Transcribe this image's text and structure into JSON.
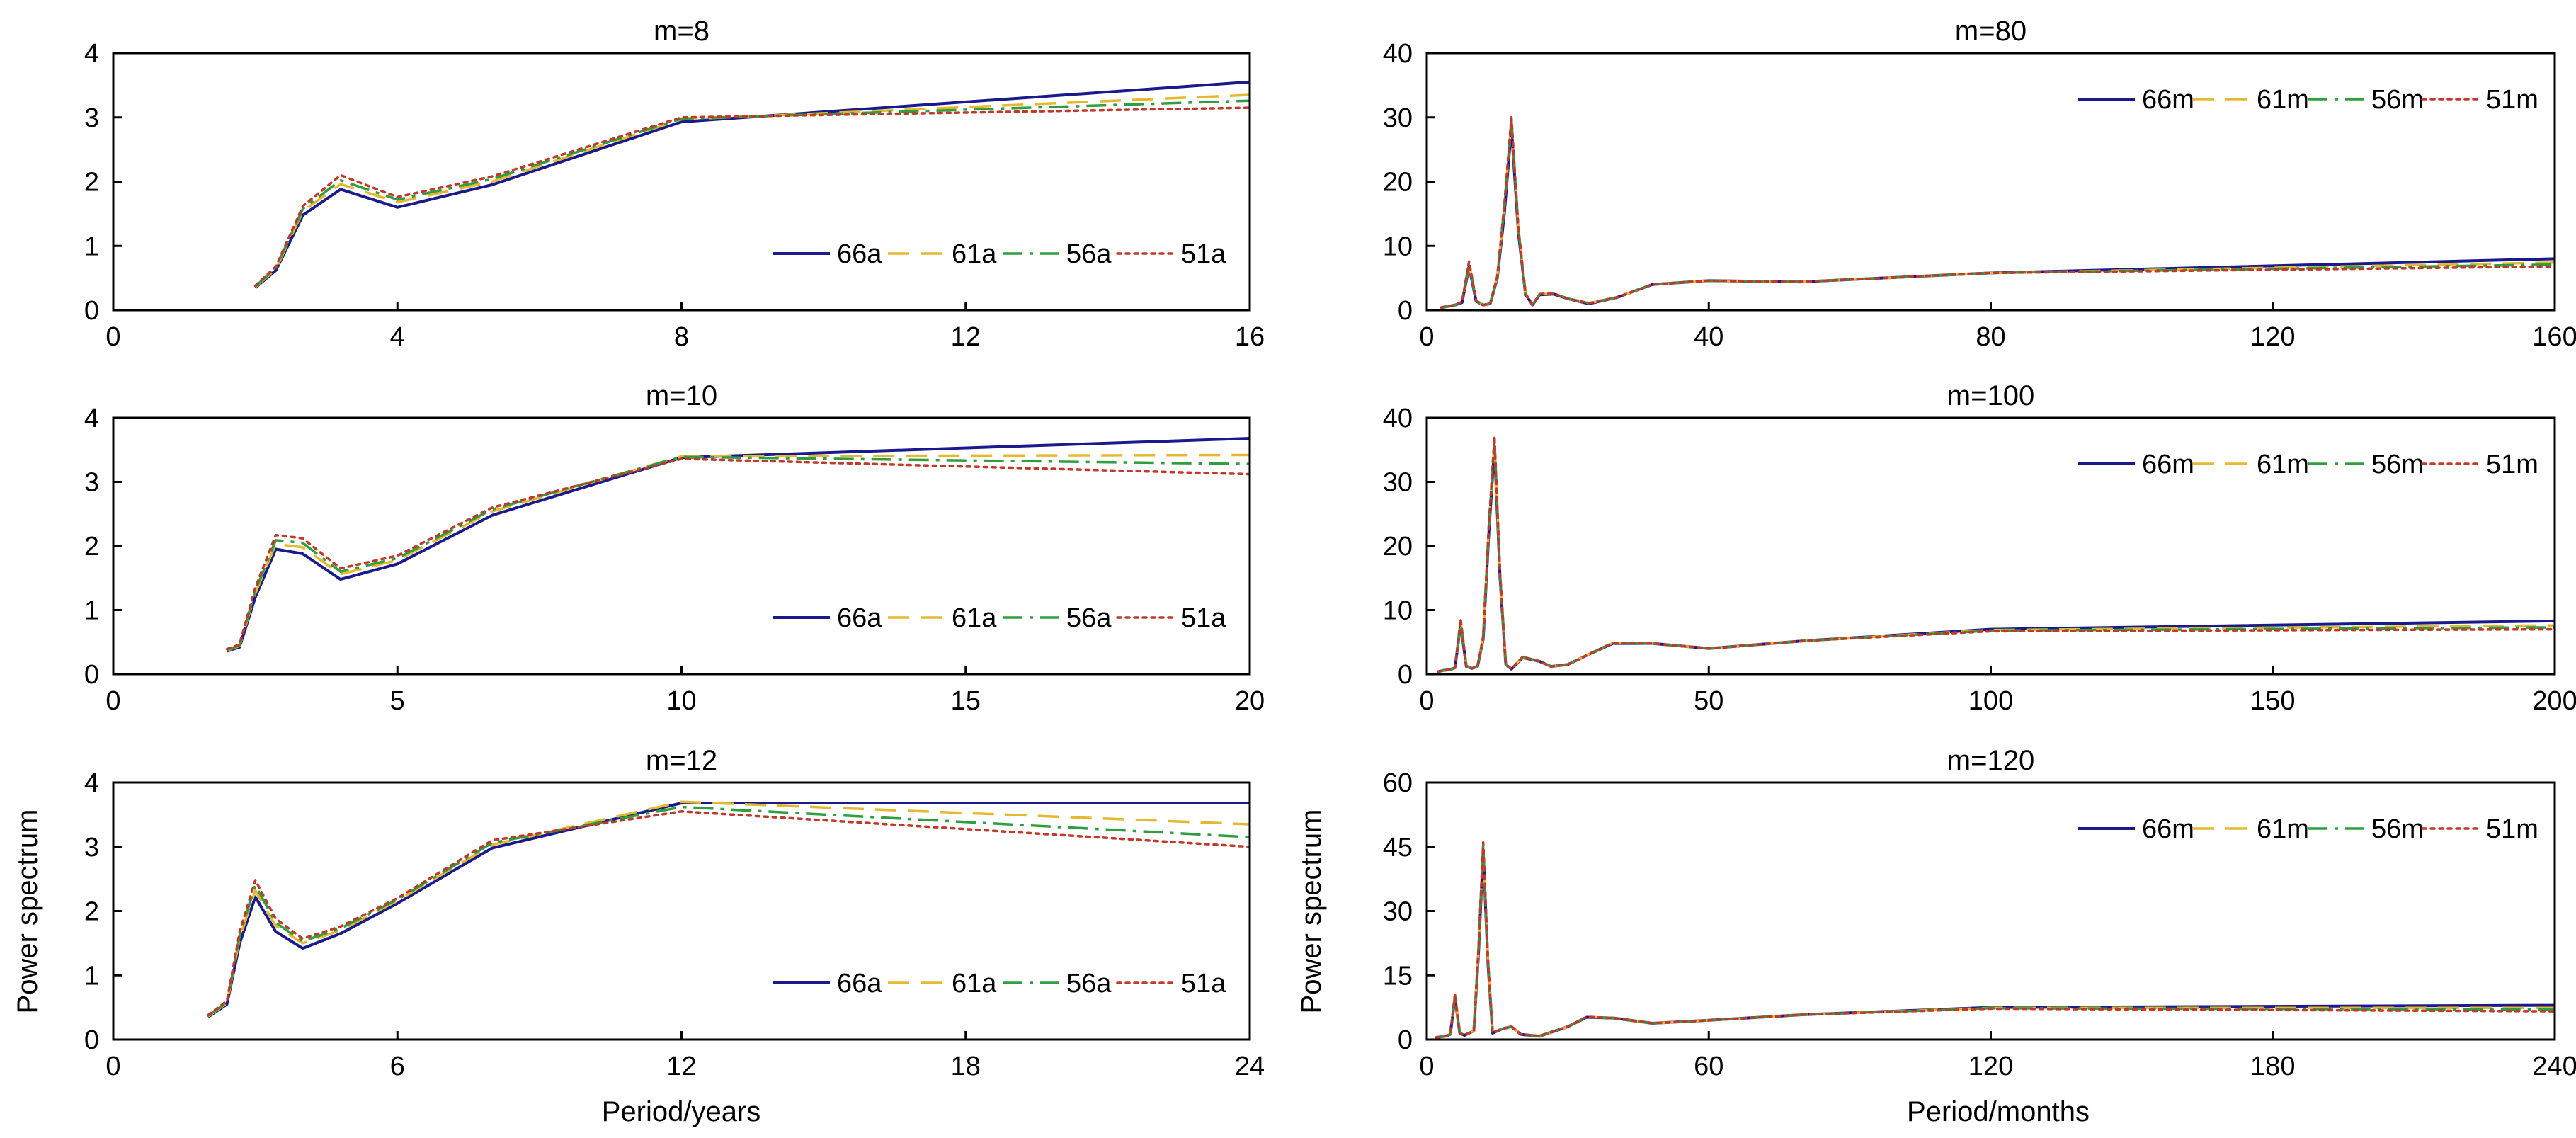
{
  "figure": {
    "left_ylabel": "Power spectrum",
    "right_ylabel": "Power spectrum",
    "left_xlabel": "Period/years",
    "right_xlabel": "Period/months"
  },
  "series_styles": [
    {
      "color": "#1a1a8c",
      "dash": "solid"
    },
    {
      "color": "#e6b830",
      "dash": "dashed"
    },
    {
      "color": "#2e9e3e",
      "dash": "dashdot"
    },
    {
      "color": "#c0392b",
      "dash": "dotted"
    }
  ],
  "chart_data": [
    {
      "type": "line",
      "title": "m=8",
      "xlim": [
        0,
        16
      ],
      "ylim": [
        0,
        4
      ],
      "xticks": [
        0,
        4,
        8,
        12,
        16
      ],
      "yticks": [
        0,
        1,
        2,
        3,
        4
      ],
      "legend": "bottom-right",
      "series": [
        {
          "name": "66a",
          "x": [
            2.0,
            2.29,
            2.67,
            3.2,
            4.0,
            5.33,
            8.0,
            16.0
          ],
          "y": [
            0.35,
            0.62,
            1.48,
            1.88,
            1.6,
            1.95,
            2.93,
            3.55
          ]
        },
        {
          "name": "61a",
          "x": [
            2.0,
            2.29,
            2.67,
            3.2,
            4.0,
            5.33,
            8.0,
            16.0
          ],
          "y": [
            0.36,
            0.64,
            1.54,
            1.96,
            1.68,
            2.0,
            2.97,
            3.35
          ]
        },
        {
          "name": "56a",
          "x": [
            2.0,
            2.29,
            2.67,
            3.2,
            4.0,
            5.33,
            8.0,
            16.0
          ],
          "y": [
            0.37,
            0.66,
            1.58,
            2.02,
            1.72,
            2.04,
            2.98,
            3.26
          ]
        },
        {
          "name": "51a",
          "x": [
            2.0,
            2.29,
            2.67,
            3.2,
            4.0,
            5.33,
            8.0,
            16.0
          ],
          "y": [
            0.38,
            0.68,
            1.62,
            2.1,
            1.76,
            2.08,
            3.0,
            3.15
          ]
        }
      ]
    },
    {
      "type": "line",
      "title": "m=80",
      "xlim": [
        0,
        160
      ],
      "ylim": [
        0,
        40
      ],
      "xticks": [
        0,
        40,
        80,
        120,
        160
      ],
      "yticks": [
        0,
        10,
        20,
        30,
        40
      ],
      "legend": "top-right",
      "series": [
        {
          "name": "66m",
          "x": [
            2,
            3,
            4,
            5,
            6,
            7,
            8,
            9,
            10,
            11,
            12,
            13,
            14,
            15,
            16,
            18,
            20,
            23,
            27,
            32,
            40,
            53,
            80,
            160
          ],
          "y": [
            0.4,
            0.6,
            0.8,
            1.2,
            6.8,
            1.4,
            0.8,
            1.0,
            5.0,
            15.0,
            28.5,
            12.0,
            2.5,
            0.8,
            2.4,
            2.5,
            1.8,
            1.0,
            2.0,
            4.0,
            4.6,
            4.4,
            5.8,
            8.0
          ]
        },
        {
          "name": "61m",
          "x": [
            2,
            3,
            4,
            5,
            6,
            7,
            8,
            9,
            10,
            11,
            12,
            13,
            14,
            15,
            16,
            18,
            20,
            23,
            27,
            32,
            40,
            53,
            80,
            160
          ],
          "y": [
            0.4,
            0.6,
            0.8,
            1.3,
            7.2,
            1.5,
            0.8,
            1.0,
            5.2,
            16.0,
            29.5,
            12.5,
            2.6,
            0.8,
            2.5,
            2.6,
            1.8,
            1.1,
            2.0,
            4.0,
            4.6,
            4.4,
            5.8,
            7.4
          ]
        },
        {
          "name": "56m",
          "x": [
            2,
            3,
            4,
            5,
            6,
            7,
            8,
            9,
            10,
            11,
            12,
            13,
            14,
            15,
            16,
            18,
            20,
            23,
            27,
            32,
            40,
            53,
            80,
            160
          ],
          "y": [
            0.4,
            0.6,
            0.8,
            1.3,
            7.4,
            1.5,
            0.8,
            1.0,
            5.2,
            16.2,
            29.8,
            12.6,
            2.6,
            0.8,
            2.5,
            2.6,
            1.8,
            1.1,
            2.0,
            4.0,
            4.6,
            4.4,
            5.8,
            7.1
          ]
        },
        {
          "name": "51m",
          "x": [
            2,
            3,
            4,
            5,
            6,
            7,
            8,
            9,
            10,
            11,
            12,
            13,
            14,
            15,
            16,
            18,
            20,
            23,
            27,
            32,
            40,
            53,
            80,
            160
          ],
          "y": [
            0.4,
            0.6,
            0.8,
            1.3,
            7.6,
            1.5,
            0.8,
            1.0,
            5.3,
            16.4,
            30.0,
            12.7,
            2.6,
            0.8,
            2.5,
            2.6,
            1.8,
            1.1,
            2.0,
            4.0,
            4.6,
            4.4,
            5.8,
            6.8
          ]
        }
      ]
    },
    {
      "type": "line",
      "title": "m=10",
      "xlim": [
        0,
        20
      ],
      "ylim": [
        0,
        4
      ],
      "xticks": [
        0,
        5,
        10,
        15,
        20
      ],
      "yticks": [
        0,
        1,
        2,
        3,
        4
      ],
      "legend": "bottom-right",
      "series": [
        {
          "name": "66a",
          "x": [
            2.0,
            2.22,
            2.5,
            2.86,
            3.33,
            4.0,
            5.0,
            6.67,
            10.0,
            20.0
          ],
          "y": [
            0.36,
            0.42,
            1.2,
            1.95,
            1.88,
            1.48,
            1.72,
            2.48,
            3.38,
            3.68
          ]
        },
        {
          "name": "61a",
          "x": [
            2.0,
            2.22,
            2.5,
            2.86,
            3.33,
            4.0,
            5.0,
            6.67,
            10.0,
            20.0
          ],
          "y": [
            0.37,
            0.44,
            1.26,
            2.03,
            1.98,
            1.56,
            1.78,
            2.54,
            3.4,
            3.42
          ]
        },
        {
          "name": "56a",
          "x": [
            2.0,
            2.22,
            2.5,
            2.86,
            3.33,
            4.0,
            5.0,
            6.67,
            10.0,
            20.0
          ],
          "y": [
            0.38,
            0.45,
            1.3,
            2.09,
            2.05,
            1.6,
            1.81,
            2.57,
            3.39,
            3.28
          ]
        },
        {
          "name": "51a",
          "x": [
            2.0,
            2.22,
            2.5,
            2.86,
            3.33,
            4.0,
            5.0,
            6.67,
            10.0,
            20.0
          ],
          "y": [
            0.39,
            0.46,
            1.35,
            2.17,
            2.12,
            1.65,
            1.85,
            2.6,
            3.36,
            3.12
          ]
        }
      ]
    },
    {
      "type": "line",
      "title": "m=100",
      "xlim": [
        0,
        200
      ],
      "ylim": [
        0,
        40
      ],
      "xticks": [
        0,
        50,
        100,
        150,
        200
      ],
      "yticks": [
        0,
        10,
        20,
        30,
        40
      ],
      "legend": "top-right",
      "series": [
        {
          "name": "66m",
          "x": [
            2,
            3,
            4,
            5,
            6,
            7,
            8,
            9,
            10,
            11,
            12,
            13,
            14,
            15,
            17,
            20,
            22,
            25,
            29,
            33,
            40,
            50,
            67,
            100,
            200
          ],
          "y": [
            0.4,
            0.6,
            0.7,
            1.0,
            7.8,
            1.2,
            0.9,
            1.2,
            5.5,
            22.0,
            35.5,
            15.0,
            1.5,
            0.8,
            2.6,
            2.0,
            1.2,
            1.5,
            3.2,
            4.8,
            4.8,
            4.0,
            5.2,
            7.0,
            8.3
          ]
        },
        {
          "name": "61m",
          "x": [
            2,
            3,
            4,
            5,
            6,
            7,
            8,
            9,
            10,
            11,
            12,
            13,
            14,
            15,
            17,
            20,
            22,
            25,
            29,
            33,
            40,
            50,
            67,
            100,
            200
          ],
          "y": [
            0.4,
            0.6,
            0.7,
            1.0,
            8.2,
            1.3,
            0.9,
            1.2,
            5.7,
            22.8,
            36.5,
            15.4,
            1.5,
            0.8,
            2.7,
            2.0,
            1.2,
            1.5,
            3.2,
            4.9,
            4.8,
            4.0,
            5.2,
            6.9,
            7.6
          ]
        },
        {
          "name": "56m",
          "x": [
            2,
            3,
            4,
            5,
            6,
            7,
            8,
            9,
            10,
            11,
            12,
            13,
            14,
            15,
            17,
            20,
            22,
            25,
            29,
            33,
            40,
            50,
            67,
            100,
            200
          ],
          "y": [
            0.4,
            0.6,
            0.7,
            1.0,
            8.4,
            1.3,
            0.9,
            1.2,
            5.8,
            23.0,
            36.8,
            15.5,
            1.5,
            0.8,
            2.7,
            2.0,
            1.2,
            1.5,
            3.2,
            4.9,
            4.8,
            4.0,
            5.2,
            6.8,
            7.3
          ]
        },
        {
          "name": "51m",
          "x": [
            2,
            3,
            4,
            5,
            6,
            7,
            8,
            9,
            10,
            11,
            12,
            13,
            14,
            15,
            17,
            20,
            22,
            25,
            29,
            33,
            40,
            50,
            67,
            100,
            200
          ],
          "y": [
            0.4,
            0.6,
            0.7,
            1.0,
            8.6,
            1.3,
            0.9,
            1.2,
            5.9,
            23.2,
            37.0,
            15.6,
            1.5,
            0.8,
            2.7,
            2.0,
            1.2,
            1.5,
            3.2,
            4.9,
            4.8,
            4.0,
            5.2,
            6.7,
            7.0
          ]
        }
      ]
    },
    {
      "type": "line",
      "title": "m=12",
      "xlim": [
        0,
        24
      ],
      "ylim": [
        0,
        4
      ],
      "xticks": [
        0,
        6,
        12,
        18,
        24
      ],
      "yticks": [
        0,
        1,
        2,
        3,
        4
      ],
      "legend": "bottom-right",
      "series": [
        {
          "name": "66a",
          "x": [
            2.0,
            2.4,
            2.67,
            3.0,
            3.43,
            4.0,
            4.8,
            6.0,
            8.0,
            12.0,
            24.0
          ],
          "y": [
            0.35,
            0.55,
            1.5,
            2.22,
            1.68,
            1.42,
            1.65,
            2.12,
            2.98,
            3.68,
            3.68
          ]
        },
        {
          "name": "61a",
          "x": [
            2.0,
            2.4,
            2.67,
            3.0,
            3.43,
            4.0,
            4.8,
            6.0,
            8.0,
            12.0,
            24.0
          ],
          "y": [
            0.36,
            0.57,
            1.58,
            2.32,
            1.77,
            1.5,
            1.7,
            2.16,
            3.03,
            3.7,
            3.35
          ]
        },
        {
          "name": "56a",
          "x": [
            2.0,
            2.4,
            2.67,
            3.0,
            3.43,
            4.0,
            4.8,
            6.0,
            8.0,
            12.0,
            24.0
          ],
          "y": [
            0.37,
            0.58,
            1.62,
            2.4,
            1.82,
            1.53,
            1.73,
            2.18,
            3.06,
            3.62,
            3.15
          ]
        },
        {
          "name": "51a",
          "x": [
            2.0,
            2.4,
            2.67,
            3.0,
            3.43,
            4.0,
            4.8,
            6.0,
            8.0,
            12.0,
            24.0
          ],
          "y": [
            0.38,
            0.6,
            1.68,
            2.48,
            1.88,
            1.57,
            1.76,
            2.2,
            3.1,
            3.55,
            3.0
          ]
        }
      ]
    },
    {
      "type": "line",
      "title": "m=120",
      "xlim": [
        0,
        240
      ],
      "ylim": [
        0,
        60
      ],
      "xticks": [
        0,
        60,
        120,
        180,
        240
      ],
      "yticks": [
        0,
        15,
        30,
        45,
        60
      ],
      "legend": "top-right",
      "series": [
        {
          "name": "66m",
          "x": [
            2,
            4,
            5,
            6,
            7,
            8,
            10,
            11,
            12,
            13,
            14,
            16,
            18,
            20,
            24,
            30,
            34,
            40,
            48,
            60,
            80,
            120,
            240
          ],
          "y": [
            0.5,
            0.8,
            1.2,
            9.8,
            1.5,
            1.0,
            2.0,
            20.0,
            44.0,
            18.0,
            1.5,
            2.5,
            3.0,
            1.2,
            0.8,
            3.0,
            5.2,
            5.0,
            3.8,
            4.5,
            5.8,
            7.5,
            8.0
          ]
        },
        {
          "name": "61m",
          "x": [
            2,
            4,
            5,
            6,
            7,
            8,
            10,
            11,
            12,
            13,
            14,
            16,
            18,
            20,
            24,
            30,
            34,
            40,
            48,
            60,
            80,
            120,
            240
          ],
          "y": [
            0.5,
            0.8,
            1.2,
            10.2,
            1.5,
            1.0,
            2.0,
            20.8,
            45.2,
            18.4,
            1.5,
            2.5,
            3.0,
            1.2,
            0.8,
            3.0,
            5.3,
            5.0,
            3.8,
            4.5,
            5.8,
            7.4,
            7.4
          ]
        },
        {
          "name": "56m",
          "x": [
            2,
            4,
            5,
            6,
            7,
            8,
            10,
            11,
            12,
            13,
            14,
            16,
            18,
            20,
            24,
            30,
            34,
            40,
            48,
            60,
            80,
            120,
            240
          ],
          "y": [
            0.5,
            0.8,
            1.2,
            10.4,
            1.5,
            1.0,
            2.0,
            21.0,
            45.6,
            18.6,
            1.5,
            2.5,
            3.0,
            1.2,
            0.8,
            3.0,
            5.3,
            5.0,
            3.8,
            4.5,
            5.8,
            7.3,
            7.0
          ]
        },
        {
          "name": "51m",
          "x": [
            2,
            4,
            5,
            6,
            7,
            8,
            10,
            11,
            12,
            13,
            14,
            16,
            18,
            20,
            24,
            30,
            34,
            40,
            48,
            60,
            80,
            120,
            240
          ],
          "y": [
            0.5,
            0.8,
            1.2,
            10.6,
            1.5,
            1.0,
            2.0,
            21.2,
            46.0,
            18.8,
            1.5,
            2.5,
            3.0,
            1.2,
            0.8,
            3.0,
            5.3,
            5.0,
            3.8,
            4.5,
            5.8,
            7.2,
            6.6
          ]
        }
      ]
    }
  ]
}
